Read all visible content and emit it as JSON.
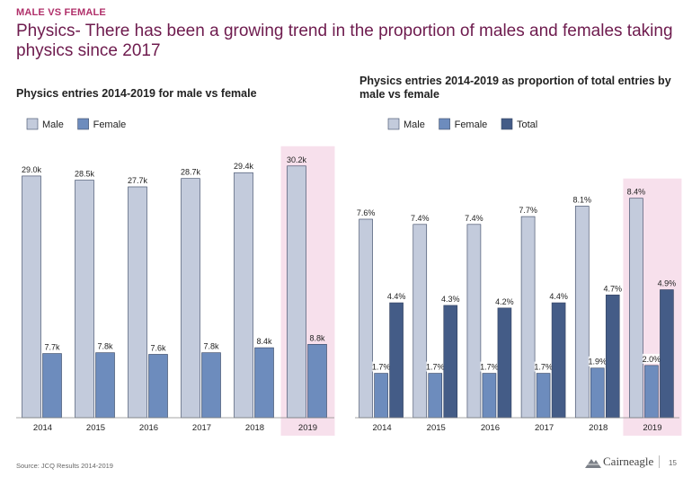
{
  "header": {
    "eyebrow": "MALE VS FEMALE",
    "title": "Physics- There has been a growing trend in the proportion of males and females taking physics since 2017"
  },
  "colors": {
    "male": "#c3cbdc",
    "female": "#6d8cbd",
    "total": "#445c87",
    "highlight": "#f7e0ec",
    "title": "#6e1b4e",
    "eyebrow": "#b0306a"
  },
  "chart_data": [
    {
      "type": "bar",
      "title": "Physics entries 2014-2019 for male vs female",
      "categories": [
        "2014",
        "2015",
        "2016",
        "2017",
        "2018",
        "2019"
      ],
      "series": [
        {
          "name": "Male",
          "values": [
            29.0,
            28.5,
            27.7,
            28.7,
            29.4,
            30.2
          ],
          "labels": [
            "29.0k",
            "28.5k",
            "27.7k",
            "28.7k",
            "29.4k",
            "30.2k"
          ]
        },
        {
          "name": "Female",
          "values": [
            7.7,
            7.8,
            7.6,
            7.8,
            8.4,
            8.8
          ],
          "labels": [
            "7.7k",
            "7.8k",
            "7.6k",
            "7.8k",
            "8.4k",
            "8.8k"
          ]
        }
      ],
      "highlight_category": "2019",
      "ylim": [
        0,
        30.5
      ],
      "legend": "top-left",
      "grid": false
    },
    {
      "type": "bar",
      "title": "Physics entries 2014-2019 as proportion of total entries by male vs female",
      "categories": [
        "2014",
        "2015",
        "2016",
        "2017",
        "2018",
        "2019"
      ],
      "series": [
        {
          "name": "Male",
          "values": [
            7.6,
            7.4,
            7.4,
            7.7,
            8.1,
            8.4
          ],
          "labels": [
            "7.6%",
            "7.4%",
            "7.4%",
            "7.7%",
            "8.1%",
            "8.4%"
          ]
        },
        {
          "name": "Female",
          "values": [
            1.7,
            1.7,
            1.7,
            1.7,
            1.9,
            2.0
          ],
          "labels": [
            "1.7%",
            "1.7%",
            "1.7%",
            "1.7%",
            "1.9%",
            "2.0%"
          ]
        },
        {
          "name": "Total",
          "values": [
            4.4,
            4.3,
            4.2,
            4.4,
            4.7,
            4.9
          ],
          "labels": [
            "4.4%",
            "4.3%",
            "4.2%",
            "4.4%",
            "4.7%",
            "4.9%"
          ]
        }
      ],
      "highlight_category": "2019",
      "ylim": [
        0,
        8.7
      ],
      "legend": "top-left",
      "grid": false
    }
  ],
  "footer": {
    "source": "Source: JCQ Results 2014-2019",
    "logo_text": "Cairneagle",
    "page_number": "15"
  }
}
